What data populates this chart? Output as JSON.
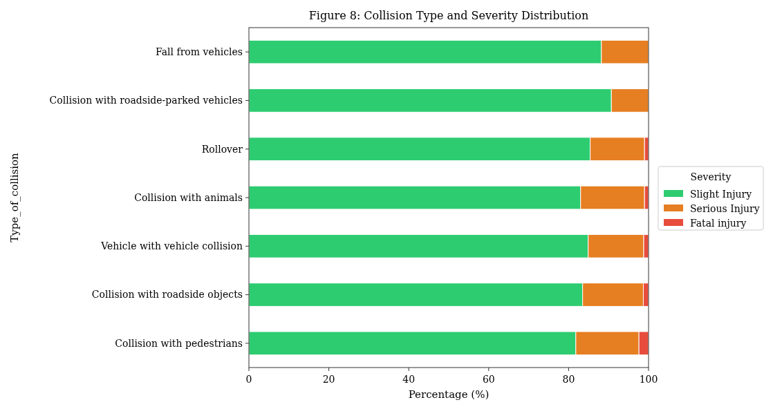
{
  "chart_data": {
    "type": "bar",
    "orientation": "horizontal",
    "stacked": true,
    "title": "Figure 8: Collision Type and Severity Distribution",
    "xlabel": "Percentage (%)",
    "ylabel": "Type_of_collision",
    "legend_title": "Severity",
    "legend": "right",
    "categories": [
      "Fall from vehicles",
      "Collision with roadside-parked vehicles",
      "Rollover",
      "Collision with animals",
      "Vehicle with vehicle collision",
      "Collision with roadside objects",
      "Collision with pedestrians"
    ],
    "series": [
      {
        "name": "Slight Injury",
        "color": "#2ecc71",
        "values": [
          88.2,
          90.7,
          85.4,
          83.0,
          84.9,
          83.5,
          81.8
        ]
      },
      {
        "name": "Serious Injury",
        "color": "#e67e22",
        "values": [
          11.8,
          9.3,
          13.6,
          16.0,
          13.9,
          15.2,
          15.8
        ]
      },
      {
        "name": "Fatal injury",
        "color": "#e74c3c",
        "values": [
          0,
          0,
          1.0,
          1.0,
          1.2,
          1.3,
          2.4
        ]
      }
    ],
    "xlim": [
      0,
      100
    ],
    "xticks": [
      0,
      20,
      40,
      60,
      80,
      100
    ],
    "grid": false
  }
}
